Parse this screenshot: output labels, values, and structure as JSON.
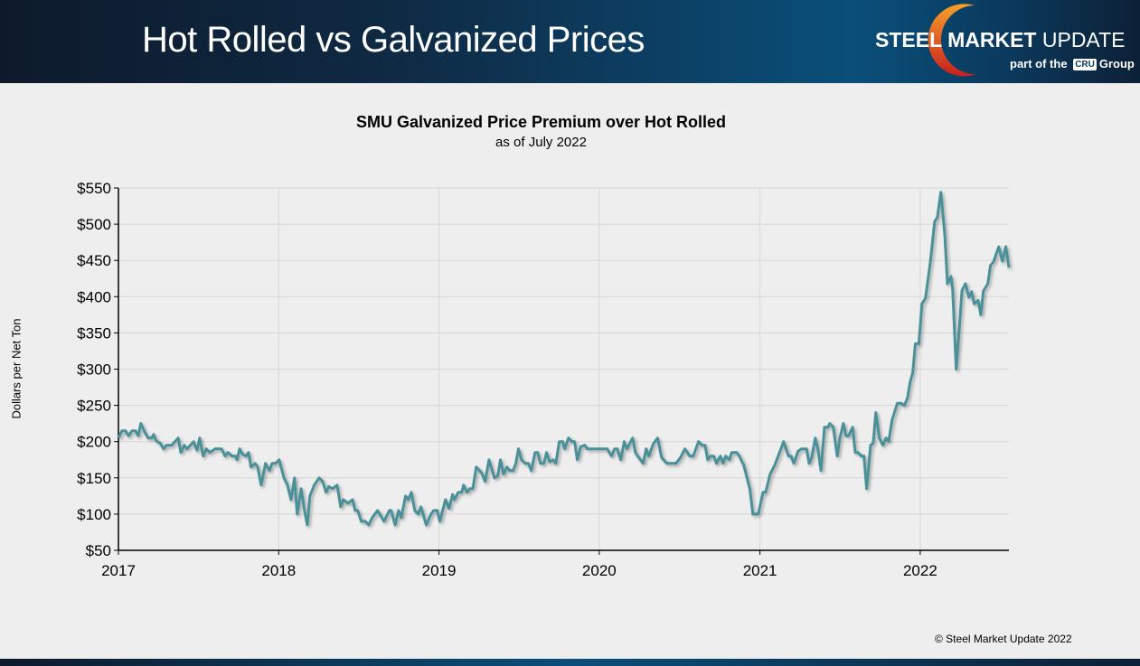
{
  "header": {
    "title": "Hot Rolled vs Galvanized Prices"
  },
  "logo": {
    "brand_bold": "STEEL MARKET",
    "brand_light": "UPDATE",
    "sub_pre": "part of the",
    "sub_mark": "CRU",
    "sub_post": "Group"
  },
  "copyright": "© Steel Market Update 2022",
  "colors": {
    "line": "#4a9098",
    "header": "#0a4f7a",
    "background": "#eeeeee"
  },
  "chart_data": {
    "type": "line",
    "title": "SMU Galvanized Price Premium over Hot Rolled",
    "subtitle": "as of July 2022",
    "ylabel": "Dollars per Net Ton",
    "xlabel": "",
    "ylim": [
      50,
      550
    ],
    "yticks": [
      50,
      100,
      150,
      200,
      250,
      300,
      350,
      400,
      450,
      500,
      550
    ],
    "ytick_labels": [
      "$50",
      "$100",
      "$150",
      "$200",
      "$250",
      "$300",
      "$350",
      "$400",
      "$450",
      "$500",
      "$550"
    ],
    "xlim": [
      "2017-01-01",
      "2022-07-22"
    ],
    "xticks": [
      "2017-01-01",
      "2018-01-01",
      "2019-01-01",
      "2020-01-01",
      "2021-01-01",
      "2022-01-01"
    ],
    "xtick_labels": [
      "2017",
      "2018",
      "2019",
      "2020",
      "2021",
      "2022"
    ],
    "grid": true,
    "series": [
      {
        "points": [
          [
            "2017-01-01",
            205
          ],
          [
            "2017-01-09",
            215
          ],
          [
            "2017-01-17",
            215
          ],
          [
            "2017-01-24",
            208
          ],
          [
            "2017-02-01",
            215
          ],
          [
            "2017-02-09",
            215
          ],
          [
            "2017-02-15",
            208
          ],
          [
            "2017-02-21",
            225
          ],
          [
            "2017-03-02",
            213
          ],
          [
            "2017-03-10",
            205
          ],
          [
            "2017-03-18",
            205
          ],
          [
            "2017-03-22",
            210
          ],
          [
            "2017-03-28",
            201
          ],
          [
            "2017-04-06",
            198
          ],
          [
            "2017-04-14",
            190
          ],
          [
            "2017-04-20",
            195
          ],
          [
            "2017-05-02",
            195
          ],
          [
            "2017-05-17",
            205
          ],
          [
            "2017-05-23",
            185
          ],
          [
            "2017-05-31",
            195
          ],
          [
            "2017-06-06",
            190
          ],
          [
            "2017-06-21",
            200
          ],
          [
            "2017-06-29",
            188
          ],
          [
            "2017-07-05",
            205
          ],
          [
            "2017-07-13",
            180
          ],
          [
            "2017-07-20",
            190
          ],
          [
            "2017-07-28",
            185
          ],
          [
            "2017-08-09",
            190
          ],
          [
            "2017-08-24",
            190
          ],
          [
            "2017-09-01",
            180
          ],
          [
            "2017-09-07",
            185
          ],
          [
            "2017-09-17",
            180
          ],
          [
            "2017-09-25",
            180
          ],
          [
            "2017-09-28",
            175
          ],
          [
            "2017-10-04",
            190
          ],
          [
            "2017-10-10",
            183
          ],
          [
            "2017-10-18",
            180
          ],
          [
            "2017-10-24",
            185
          ],
          [
            "2017-10-30",
            165
          ],
          [
            "2017-11-08",
            170
          ],
          [
            "2017-11-14",
            165
          ],
          [
            "2017-11-22",
            140
          ],
          [
            "2017-12-02",
            170
          ],
          [
            "2017-12-11",
            160
          ],
          [
            "2017-12-17",
            170
          ],
          [
            "2017-12-25",
            170
          ],
          [
            "2018-01-02",
            175
          ],
          [
            "2018-01-13",
            150
          ],
          [
            "2018-01-21",
            140
          ],
          [
            "2018-01-29",
            120
          ],
          [
            "2018-02-06",
            150
          ],
          [
            "2018-02-12",
            100
          ],
          [
            "2018-02-21",
            135
          ],
          [
            "2018-03-01",
            104
          ],
          [
            "2018-03-07",
            85
          ],
          [
            "2018-03-13",
            125
          ],
          [
            "2018-03-23",
            140
          ],
          [
            "2018-04-03",
            150
          ],
          [
            "2018-04-11",
            145
          ],
          [
            "2018-04-19",
            130
          ],
          [
            "2018-04-25",
            138
          ],
          [
            "2018-05-04",
            135
          ],
          [
            "2018-05-14",
            140
          ],
          [
            "2018-05-22",
            110
          ],
          [
            "2018-05-28",
            120
          ],
          [
            "2018-06-08",
            115
          ],
          [
            "2018-06-18",
            120
          ],
          [
            "2018-06-24",
            105
          ],
          [
            "2018-06-30",
            105
          ],
          [
            "2018-07-08",
            90
          ],
          [
            "2018-07-17",
            90
          ],
          [
            "2018-07-25",
            85
          ],
          [
            "2018-08-02",
            95
          ],
          [
            "2018-08-14",
            105
          ],
          [
            "2018-08-29",
            90
          ],
          [
            "2018-09-10",
            105
          ],
          [
            "2018-09-14",
            105
          ],
          [
            "2018-09-23",
            85
          ],
          [
            "2018-10-01",
            105
          ],
          [
            "2018-10-07",
            95
          ],
          [
            "2018-10-17",
            125
          ],
          [
            "2018-10-23",
            120
          ],
          [
            "2018-10-30",
            130
          ],
          [
            "2018-11-07",
            105
          ],
          [
            "2018-11-15",
            100
          ],
          [
            "2018-11-21",
            110
          ],
          [
            "2018-12-03",
            85
          ],
          [
            "2018-12-14",
            100
          ],
          [
            "2018-12-20",
            105
          ],
          [
            "2018-12-28",
            105
          ],
          [
            "2019-01-03",
            90
          ],
          [
            "2019-01-16",
            120
          ],
          [
            "2019-01-24",
            108
          ],
          [
            "2019-02-01",
            127
          ],
          [
            "2019-02-05",
            120
          ],
          [
            "2019-02-14",
            130
          ],
          [
            "2019-02-22",
            130
          ],
          [
            "2019-02-26",
            140
          ],
          [
            "2019-03-06",
            130
          ],
          [
            "2019-03-12",
            135
          ],
          [
            "2019-03-19",
            135
          ],
          [
            "2019-03-27",
            165
          ],
          [
            "2019-04-08",
            157
          ],
          [
            "2019-04-16",
            145
          ],
          [
            "2019-04-25",
            175
          ],
          [
            "2019-05-07",
            150
          ],
          [
            "2019-05-15",
            153
          ],
          [
            "2019-05-21",
            175
          ],
          [
            "2019-05-28",
            155
          ],
          [
            "2019-06-05",
            165
          ],
          [
            "2019-06-11",
            160
          ],
          [
            "2019-06-19",
            160
          ],
          [
            "2019-06-25",
            170
          ],
          [
            "2019-07-01",
            190
          ],
          [
            "2019-07-08",
            175
          ],
          [
            "2019-07-16",
            170
          ],
          [
            "2019-07-24",
            170
          ],
          [
            "2019-07-30",
            160
          ],
          [
            "2019-08-08",
            185
          ],
          [
            "2019-08-14",
            185
          ],
          [
            "2019-08-20",
            170
          ],
          [
            "2019-08-28",
            170
          ],
          [
            "2019-09-03",
            185
          ],
          [
            "2019-09-10",
            172
          ],
          [
            "2019-09-18",
            175
          ],
          [
            "2019-09-24",
            170
          ],
          [
            "2019-10-02",
            200
          ],
          [
            "2019-10-10",
            200
          ],
          [
            "2019-10-14",
            190
          ],
          [
            "2019-10-23",
            205
          ],
          [
            "2019-10-31",
            200
          ],
          [
            "2019-11-06",
            200
          ],
          [
            "2019-11-12",
            175
          ],
          [
            "2019-11-20",
            193
          ],
          [
            "2019-11-29",
            195
          ],
          [
            "2019-12-05",
            190
          ],
          [
            "2020-01-19",
            190
          ],
          [
            "2020-01-29",
            180
          ],
          [
            "2020-02-05",
            190
          ],
          [
            "2020-02-11",
            190
          ],
          [
            "2020-02-19",
            175
          ],
          [
            "2020-02-27",
            200
          ],
          [
            "2020-03-04",
            190
          ],
          [
            "2020-03-17",
            205
          ],
          [
            "2020-03-23",
            185
          ],
          [
            "2020-03-31",
            178
          ],
          [
            "2020-04-10",
            170
          ],
          [
            "2020-04-17",
            190
          ],
          [
            "2020-04-23",
            180
          ],
          [
            "2020-05-03",
            197
          ],
          [
            "2020-05-13",
            205
          ],
          [
            "2020-05-22",
            178
          ],
          [
            "2020-06-03",
            170
          ],
          [
            "2020-06-24",
            170
          ],
          [
            "2020-07-04",
            178
          ],
          [
            "2020-07-14",
            190
          ],
          [
            "2020-07-25",
            180
          ],
          [
            "2020-08-02",
            180
          ],
          [
            "2020-08-14",
            200
          ],
          [
            "2020-08-22",
            195
          ],
          [
            "2020-08-29",
            195
          ],
          [
            "2020-09-04",
            175
          ],
          [
            "2020-09-10",
            180
          ],
          [
            "2020-09-18",
            180
          ],
          [
            "2020-09-24",
            170
          ],
          [
            "2020-10-03",
            180
          ],
          [
            "2020-10-09",
            170
          ],
          [
            "2020-10-15",
            180
          ],
          [
            "2020-10-23",
            175
          ],
          [
            "2020-10-29",
            185
          ],
          [
            "2020-11-09",
            185
          ],
          [
            "2020-11-15",
            180
          ],
          [
            "2020-11-25",
            168
          ],
          [
            "2020-12-09",
            135
          ],
          [
            "2020-12-16",
            100
          ],
          [
            "2020-12-28",
            100
          ],
          [
            "2021-01-08",
            130
          ],
          [
            "2021-01-14",
            130
          ],
          [
            "2021-01-24",
            155
          ],
          [
            "2021-02-04",
            168
          ],
          [
            "2021-02-24",
            200
          ],
          [
            "2021-03-07",
            180
          ],
          [
            "2021-03-13",
            180
          ],
          [
            "2021-03-19",
            170
          ],
          [
            "2021-03-29",
            187
          ],
          [
            "2021-04-06",
            190
          ],
          [
            "2021-04-17",
            190
          ],
          [
            "2021-04-23",
            170
          ],
          [
            "2021-04-29",
            178
          ],
          [
            "2021-05-07",
            205
          ],
          [
            "2021-05-13",
            190
          ],
          [
            "2021-05-20",
            160
          ],
          [
            "2021-05-28",
            220
          ],
          [
            "2021-06-05",
            220
          ],
          [
            "2021-06-09",
            225
          ],
          [
            "2021-06-17",
            220
          ],
          [
            "2021-06-26",
            180
          ],
          [
            "2021-07-02",
            205
          ],
          [
            "2021-07-10",
            225
          ],
          [
            "2021-07-16",
            208
          ],
          [
            "2021-07-22",
            208
          ],
          [
            "2021-07-31",
            220
          ],
          [
            "2021-08-06",
            185
          ],
          [
            "2021-08-12",
            185
          ],
          [
            "2021-08-20",
            180
          ],
          [
            "2021-08-26",
            180
          ],
          [
            "2021-09-01",
            135
          ],
          [
            "2021-09-10",
            195
          ],
          [
            "2021-09-16",
            198
          ],
          [
            "2021-09-22",
            240
          ],
          [
            "2021-09-30",
            205
          ],
          [
            "2021-10-08",
            195
          ],
          [
            "2021-10-15",
            205
          ],
          [
            "2021-10-21",
            200
          ],
          [
            "2021-10-29",
            230
          ],
          [
            "2021-11-10",
            253
          ],
          [
            "2021-11-18",
            253
          ],
          [
            "2021-11-26",
            250
          ],
          [
            "2021-12-03",
            260
          ],
          [
            "2021-12-09",
            282
          ],
          [
            "2021-12-15",
            295
          ],
          [
            "2021-12-21",
            335
          ],
          [
            "2021-12-29",
            335
          ],
          [
            "2022-01-05",
            390
          ],
          [
            "2022-01-13",
            398
          ],
          [
            "2022-01-24",
            448
          ],
          [
            "2022-02-03",
            504
          ],
          [
            "2022-02-09",
            509
          ],
          [
            "2022-02-17",
            544
          ],
          [
            "2022-02-26",
            485
          ],
          [
            "2022-03-04",
            418
          ],
          [
            "2022-03-12",
            428
          ],
          [
            "2022-03-16",
            410
          ],
          [
            "2022-03-24",
            300
          ],
          [
            "2022-04-02",
            373
          ],
          [
            "2022-04-06",
            408
          ],
          [
            "2022-04-14",
            418
          ],
          [
            "2022-04-22",
            399
          ],
          [
            "2022-04-28",
            407
          ],
          [
            "2022-05-04",
            390
          ],
          [
            "2022-05-13",
            395
          ],
          [
            "2022-05-19",
            375
          ],
          [
            "2022-05-25",
            408
          ],
          [
            "2022-06-04",
            418
          ],
          [
            "2022-06-10",
            443
          ],
          [
            "2022-06-17",
            448
          ],
          [
            "2022-06-29",
            469
          ],
          [
            "2022-07-07",
            449
          ],
          [
            "2022-07-15",
            469
          ],
          [
            "2022-07-22",
            440
          ]
        ]
      }
    ]
  }
}
